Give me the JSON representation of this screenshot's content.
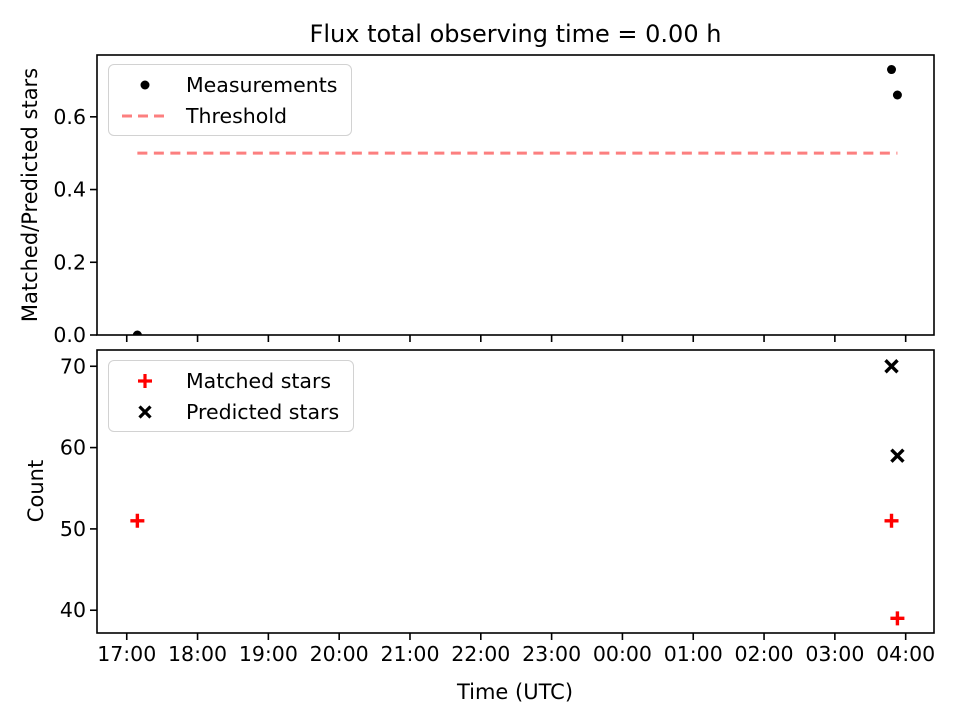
{
  "chart_data": [
    {
      "type": "scatter",
      "title": "Flux total observing time = 0.00 h",
      "ylabel": "Matched/Predicted stars",
      "ylim": [
        0,
        0.77
      ],
      "yticks": [
        "0.0",
        "0.2",
        "0.4",
        "0.6"
      ],
      "grid": false,
      "legend_position": "upper left",
      "series": [
        {
          "name": "Measurements",
          "marker": "point",
          "color": "#000000",
          "points": [
            {
              "t": "17:09",
              "y": 0.0
            },
            {
              "t": "03:48",
              "y": 0.73
            },
            {
              "t": "03:53",
              "y": 0.66
            }
          ]
        },
        {
          "name": "Threshold",
          "kind": "hline-dashed",
          "color": "#fc7f7f",
          "value": 0.5,
          "from": "17:09",
          "to": "03:53"
        }
      ]
    },
    {
      "type": "scatter",
      "ylabel": "Count",
      "xlabel": "Time (UTC)",
      "ylim": [
        37.2,
        72.0
      ],
      "yticks": [
        "40",
        "50",
        "60",
        "70"
      ],
      "xticks": [
        "17:00",
        "18:00",
        "19:00",
        "20:00",
        "21:00",
        "22:00",
        "23:00",
        "00:00",
        "01:00",
        "02:00",
        "03:00",
        "04:00"
      ],
      "grid": false,
      "legend_position": "upper left",
      "series": [
        {
          "name": "Matched stars",
          "marker": "plus",
          "color": "#ff0000",
          "points": [
            {
              "t": "17:09",
              "y": 51
            },
            {
              "t": "03:48",
              "y": 51
            },
            {
              "t": "03:53",
              "y": 39
            }
          ]
        },
        {
          "name": "Predicted stars",
          "marker": "x",
          "color": "#000000",
          "points": [
            {
              "t": "03:48",
              "y": 70
            },
            {
              "t": "03:53",
              "y": 59
            }
          ]
        }
      ]
    }
  ]
}
